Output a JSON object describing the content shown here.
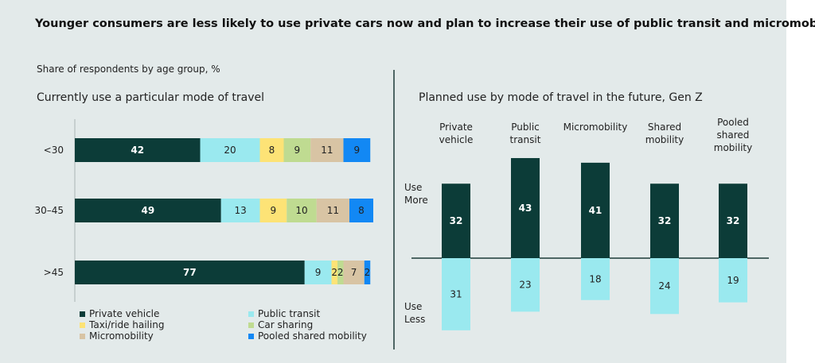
{
  "title": "Younger consumers are less likely to use private cars now and plan to increase their use of public transit and micromobility.",
  "subtitle": "Share of respondents by age group, %",
  "colors": {
    "private_vehicle": "#0c3c38",
    "public_transit": "#9ae9ef",
    "taxi": "#fde376",
    "car_sharing": "#bfdb91",
    "micromobility": "#d8c4a4",
    "pooled": "#1288f4",
    "less": "#9ae9ef",
    "more": "#0c3c38"
  },
  "chart_data": [
    {
      "type": "bar",
      "orientation": "horizontal-stacked",
      "title": "Currently use a particular mode of travel",
      "categories": [
        "<30",
        "30–45",
        ">45"
      ],
      "series": [
        {
          "name": "Private vehicle",
          "values": [
            42,
            49,
            77
          ]
        },
        {
          "name": "Public transit",
          "values": [
            20,
            13,
            9
          ]
        },
        {
          "name": "Taxi/ride hailing",
          "values": [
            8,
            9,
            2
          ]
        },
        {
          "name": "Car sharing",
          "values": [
            9,
            10,
            2
          ]
        },
        {
          "name": "Micromobility",
          "values": [
            11,
            11,
            7
          ]
        },
        {
          "name": "Pooled shared mobility",
          "values": [
            9,
            8,
            2
          ]
        }
      ],
      "legend_placement": "bottom"
    },
    {
      "type": "bar",
      "orientation": "diverging-vertical",
      "title": "Planned use by mode of travel in the future, Gen Z",
      "categories": [
        "Private vehicle",
        "Public transit",
        "Micromobility",
        "Shared mobility",
        "Pooled shared mobility"
      ],
      "category_labels": [
        [
          "Private",
          "vehicle"
        ],
        [
          "Public",
          "transit"
        ],
        [
          "Micromobility"
        ],
        [
          "Shared",
          "mobility"
        ],
        [
          "Pooled",
          "shared",
          "mobility"
        ]
      ],
      "axis_labels": {
        "more": [
          "Use",
          "More"
        ],
        "less": [
          "Use",
          "Less"
        ]
      },
      "series": [
        {
          "name": "Use More",
          "values": [
            32,
            43,
            41,
            32,
            32
          ]
        },
        {
          "name": "Use Less",
          "values": [
            31,
            23,
            18,
            24,
            19
          ]
        }
      ]
    }
  ]
}
